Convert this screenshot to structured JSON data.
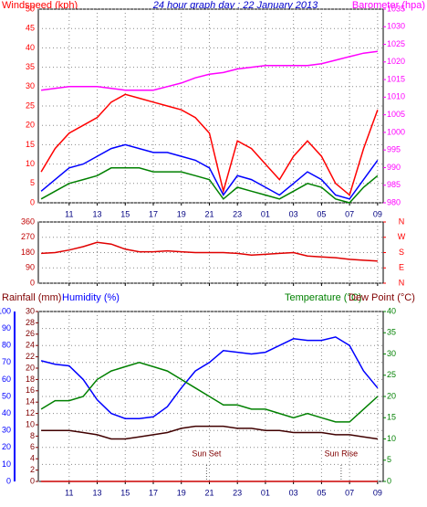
{
  "chart_data": [
    {
      "type": "line",
      "title": "24 hour graph day : 22 January 2013",
      "ylabel": "Windspeed (kph)",
      "y2label": "Barometer (hpa)",
      "x": [
        9,
        10,
        11,
        12,
        13,
        14,
        15,
        16,
        17,
        18,
        19,
        20,
        21,
        22,
        23,
        24,
        25,
        26,
        27,
        28,
        29,
        30,
        31,
        32,
        33
      ],
      "xlim": [
        8.8,
        33.4
      ],
      "xticks": [
        11,
        13,
        15,
        17,
        19,
        21,
        23,
        {
          "value": 25,
          "label": "01"
        },
        {
          "value": 27,
          "label": "03"
        },
        {
          "value": 29,
          "label": "05"
        },
        {
          "value": 31,
          "label": "07"
        },
        {
          "value": 33,
          "label": "09"
        }
      ],
      "ylim": [
        0,
        50
      ],
      "yticks": [
        0,
        5,
        10,
        15,
        20,
        25,
        30,
        35,
        40,
        45,
        50
      ],
      "ytick_color": "#ff0000",
      "y2lim": [
        980,
        1035
      ],
      "y2ticks": [
        980,
        985,
        990,
        995,
        1000,
        1005,
        1010,
        1015,
        1020,
        1025,
        1030,
        1035
      ],
      "y2tick_color": "#ff00ff",
      "grid": true,
      "series": [
        {
          "color": "#ff0000",
          "values": [
            8,
            14,
            18,
            20,
            22,
            26,
            28,
            27,
            26,
            25,
            24,
            22,
            18,
            3,
            16,
            14,
            10,
            6,
            12,
            16,
            12,
            5,
            2,
            14,
            24
          ]
        },
        {
          "color": "#0000ff",
          "values": [
            3,
            6,
            9,
            10,
            12,
            14,
            15,
            14,
            13,
            13,
            12,
            11,
            9,
            2,
            7,
            6,
            4,
            2,
            5,
            8,
            6,
            2,
            1,
            6,
            11
          ]
        },
        {
          "color": "#008000",
          "values": [
            1,
            3,
            5,
            6,
            7,
            9,
            9,
            9,
            8,
            8,
            8,
            7,
            6,
            1,
            4,
            3,
            2,
            1,
            3,
            5,
            4,
            1,
            0,
            4,
            7
          ]
        },
        {
          "color": "#ff00ff",
          "axis": "y2",
          "values": [
            1012,
            1012.5,
            1013,
            1013,
            1013,
            1012.5,
            1012,
            1012,
            1012,
            1013,
            1014,
            1015.5,
            1016.5,
            1017,
            1018,
            1018.5,
            1019,
            1019,
            1019,
            1019,
            1019.5,
            1020.5,
            1021.5,
            1022.5,
            1023
          ]
        }
      ]
    },
    {
      "type": "line",
      "x": [
        9,
        10,
        11,
        12,
        13,
        14,
        15,
        16,
        17,
        18,
        19,
        20,
        21,
        22,
        23,
        24,
        25,
        26,
        27,
        28,
        29,
        30,
        31,
        32,
        33
      ],
      "xlim": [
        8.8,
        33.4
      ],
      "ylim": [
        0,
        360
      ],
      "yticks": [
        0,
        90,
        180,
        270,
        360
      ],
      "ytick_color": "#c00000",
      "y2lim": [
        0,
        360
      ],
      "y2ticks": [
        {
          "value": 0,
          "label": "N"
        },
        {
          "value": 90,
          "label": "E"
        },
        {
          "value": 180,
          "label": "S"
        },
        {
          "value": 270,
          "label": "W"
        },
        {
          "value": 360,
          "label": "N"
        }
      ],
      "y2tick_color": "#ff0000",
      "grid": true,
      "series": [
        {
          "color": "#e00000",
          "values": [
            175,
            180,
            195,
            215,
            240,
            230,
            200,
            185,
            185,
            190,
            185,
            180,
            180,
            180,
            175,
            165,
            170,
            175,
            180,
            160,
            155,
            150,
            140,
            135,
            130
          ]
        }
      ]
    },
    {
      "type": "line",
      "ylabel": "Humidity (%)",
      "y3label": "Rainfall (mm)",
      "y2labels": [
        "Temperature (°C)",
        "Dew Point (°C)"
      ],
      "x": [
        9,
        10,
        11,
        12,
        13,
        14,
        15,
        16,
        17,
        18,
        19,
        20,
        21,
        22,
        23,
        24,
        25,
        26,
        27,
        28,
        29,
        30,
        31,
        32,
        33
      ],
      "xlim": [
        8.8,
        33.4
      ],
      "xticks": [
        11,
        13,
        15,
        17,
        19,
        21,
        23,
        {
          "value": 25,
          "label": "01"
        },
        {
          "value": 27,
          "label": "03"
        },
        {
          "value": 29,
          "label": "05"
        },
        {
          "value": 31,
          "label": "07"
        },
        {
          "value": 33,
          "label": "09"
        }
      ],
      "ylim": [
        0,
        100
      ],
      "yticks": [
        0,
        10,
        20,
        30,
        40,
        50,
        60,
        70,
        80,
        90,
        100
      ],
      "ytick_color": "#0000ff",
      "y3lim": [
        0,
        30
      ],
      "y3ticks": [
        0,
        2,
        4,
        6,
        8,
        10,
        12,
        14,
        16,
        18,
        20,
        22,
        24,
        26,
        28,
        30
      ],
      "y3tick_color": "#800000",
      "y2lim": [
        0,
        40
      ],
      "y2ticks": [
        0,
        5,
        10,
        15,
        20,
        25,
        30,
        35,
        40
      ],
      "y2tick_color": "#008000",
      "grid": true,
      "annotations": [
        {
          "text": "Sun Set",
          "x": 20.8
        },
        {
          "text": "Sun Rise",
          "x": 30.4
        }
      ],
      "series": [
        {
          "color": "#0000ff",
          "values": [
            71,
            69,
            68,
            60,
            48,
            40,
            37,
            37,
            38,
            44,
            55,
            65,
            70,
            77,
            76,
            75,
            76,
            80,
            84,
            83,
            83,
            85,
            80,
            65,
            55
          ]
        },
        {
          "color": "#008000",
          "axis": "y2",
          "values": [
            17,
            19,
            19,
            20,
            24,
            26,
            27,
            28,
            27,
            26,
            24,
            22,
            20,
            18,
            18,
            17,
            17,
            16,
            15,
            16,
            15,
            14,
            14,
            17,
            20
          ]
        },
        {
          "color": "#400000",
          "axis": "y2",
          "values": [
            12,
            12,
            12,
            11.5,
            11,
            10,
            10,
            10.5,
            11,
            11.5,
            12.5,
            13,
            13,
            13,
            12.5,
            12.5,
            12,
            12,
            11.5,
            11.5,
            11.5,
            11,
            11,
            10.5,
            10
          ]
        },
        {
          "color": "#cc0000",
          "axis": "y3",
          "values": [
            0,
            0,
            0,
            0,
            0,
            0,
            0,
            0,
            0,
            0,
            0,
            0,
            0,
            0,
            0,
            0,
            0,
            0,
            0,
            0,
            0,
            0,
            0,
            0,
            0
          ]
        }
      ]
    }
  ]
}
